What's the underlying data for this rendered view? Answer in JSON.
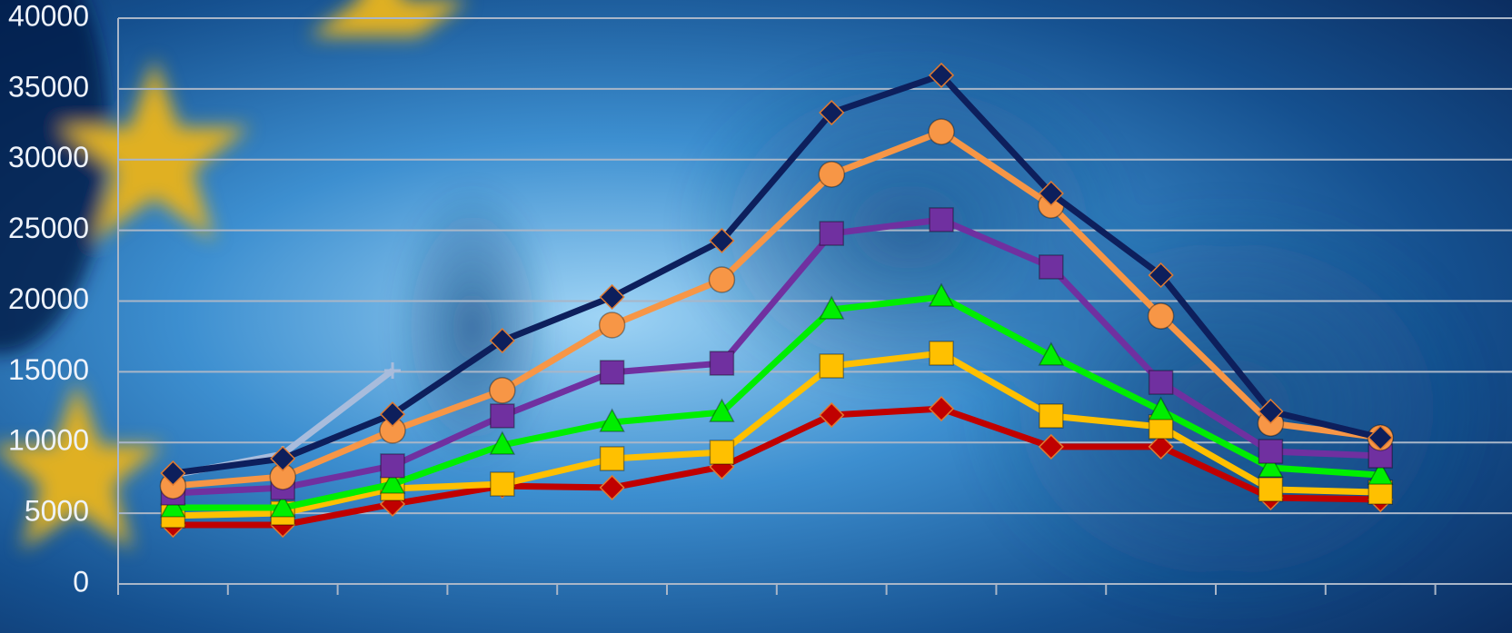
{
  "chart_data": {
    "type": "line",
    "categories": [
      null,
      null,
      null,
      null,
      null,
      null,
      null,
      null,
      null,
      null,
      null,
      null
    ],
    "series": [
      {
        "color": "#0d1f5c",
        "marker": "diamond",
        "values": [
          7830,
          8860,
          12000,
          17200,
          20290,
          24270,
          33320,
          35960,
          27610,
          21830,
          12200,
          10340
        ]
      },
      {
        "color": "#f79646",
        "marker": "circle",
        "values": [
          6930,
          7580,
          10850,
          13680,
          18300,
          21510,
          28960,
          31970,
          26770,
          18940,
          11360,
          10340
        ]
      },
      {
        "color": "#7030a0",
        "marker": "square",
        "values": [
          6420,
          6800,
          8350,
          11880,
          14960,
          15600,
          24780,
          25750,
          22410,
          14250,
          9370,
          9050
        ]
      },
      {
        "color": "#00ee00",
        "marker": "triangle",
        "values": [
          5390,
          5390,
          7060,
          9820,
          11430,
          12130,
          19390,
          20290,
          16120,
          12260,
          8220,
          7700
        ]
      },
      {
        "color": "#ffc000",
        "marker": "square",
        "values": [
          4820,
          5010,
          6740,
          7060,
          8860,
          9310,
          15410,
          16310,
          11880,
          11110,
          6680,
          6480
        ]
      },
      {
        "color": "#c00000",
        "marker": "diamond",
        "values": [
          4170,
          4170,
          5650,
          6930,
          6810,
          8280,
          11940,
          12390,
          9700,
          9700,
          6100,
          5970
        ]
      },
      {
        "color": "#a8bcdc",
        "marker": "plus",
        "values": [
          7700,
          9180,
          15090,
          null,
          null,
          null,
          null,
          null,
          null,
          null,
          null,
          null
        ]
      }
    ],
    "ylim": [
      0,
      40000
    ],
    "yticks": [
      0,
      5000,
      10000,
      15000,
      20000,
      25000,
      30000,
      35000,
      40000
    ],
    "grid": true
  }
}
